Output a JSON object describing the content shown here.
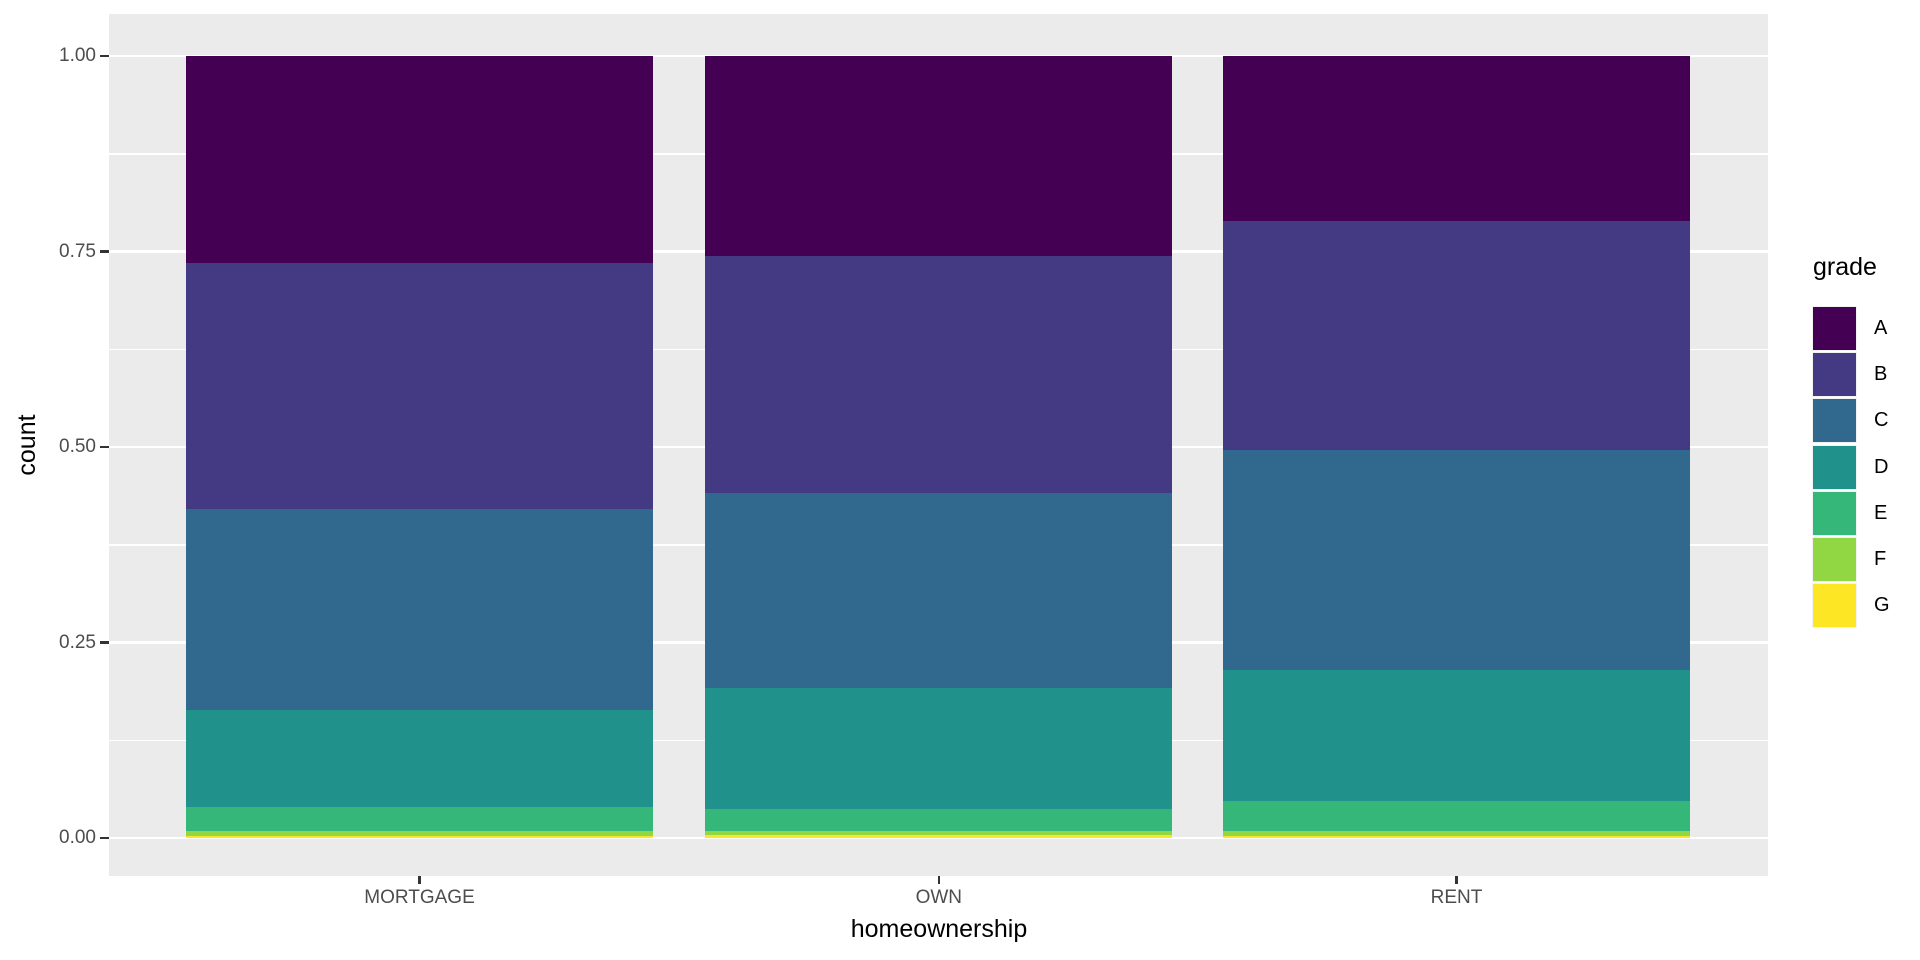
{
  "chart_data": {
    "type": "bar",
    "subtype": "stacked-filled-proportion",
    "orientation": "vertical",
    "title": "",
    "xlabel": "homeownership",
    "ylabel": "count",
    "categories": [
      "MORTGAGE",
      "OWN",
      "RENT"
    ],
    "series": [
      {
        "name": "A",
        "color": "#440154",
        "values": [
          0.265,
          0.256,
          0.211
        ]
      },
      {
        "name": "B",
        "color": "#443983",
        "values": [
          0.314,
          0.303,
          0.293
        ]
      },
      {
        "name": "C",
        "color": "#31688E",
        "values": [
          0.257,
          0.249,
          0.281
        ]
      },
      {
        "name": "D",
        "color": "#21918C",
        "values": [
          0.124,
          0.155,
          0.168
        ]
      },
      {
        "name": "E",
        "color": "#35B779",
        "values": [
          0.031,
          0.028,
          0.038
        ]
      },
      {
        "name": "F",
        "color": "#90D743",
        "values": [
          0.006,
          0.005,
          0.006
        ]
      },
      {
        "name": "G",
        "color": "#FDE725",
        "values": [
          0.003,
          0.004,
          0.003
        ]
      }
    ],
    "ylim": [
      0,
      1
    ],
    "y_ticks": [
      {
        "value": 1.0,
        "label": "1.00"
      },
      {
        "value": 0.75,
        "label": "0.75"
      },
      {
        "value": 0.5,
        "label": "0.50"
      },
      {
        "value": 0.25,
        "label": "0.25"
      },
      {
        "value": 0.0,
        "label": "0.00"
      }
    ],
    "y_minor_ticks": [
      0.875,
      0.625,
      0.375,
      0.125
    ],
    "grid": "white major and minor horizontal lines on gray panel",
    "legend": {
      "title": "grade",
      "position": "right",
      "entries": [
        "A",
        "B",
        "C",
        "D",
        "E",
        "F",
        "G"
      ]
    },
    "style": {
      "panel_background": "#EBEBEB",
      "gridline_color": "#FFFFFF",
      "tick_label_color": "#4D4D4D",
      "tick_mark_color": "#333333",
      "axis_title_color": "#000000",
      "figure_background": "#FFFFFF",
      "bar_width_fraction": 0.9
    }
  }
}
